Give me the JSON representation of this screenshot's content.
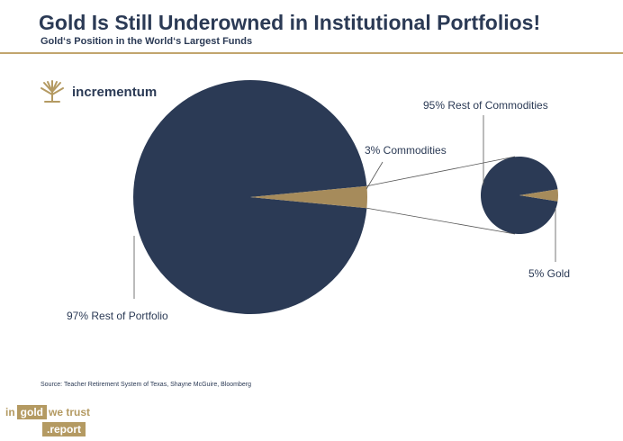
{
  "header": {
    "title": "Gold Is Still Underowned in Institutional Portfolios!",
    "subtitle": "Gold‘s Position in the World‘s Largest Funds"
  },
  "logo": {
    "name": "incrementum",
    "icon": "tree-logo-icon"
  },
  "chart_data": [
    {
      "type": "pie",
      "slices": [
        {
          "label": "97% Rest of Portfolio",
          "value": 97,
          "color": "#2b3a55"
        },
        {
          "label": "3% Commodities",
          "value": 3,
          "color": "#a68b5b"
        }
      ]
    },
    {
      "type": "pie",
      "slices": [
        {
          "label": "95% Rest of Commodities",
          "value": 95,
          "color": "#2b3a55"
        },
        {
          "label": "5% Gold",
          "value": 5,
          "color": "#a68b5b"
        }
      ]
    }
  ],
  "footer": {
    "source": "Source: Teacher Retirement System of Texas, Shayne McGuire, Bloomberg",
    "brand": {
      "in": "in",
      "gold": "gold",
      "we_trust": "we trust",
      "report": ".report"
    }
  }
}
